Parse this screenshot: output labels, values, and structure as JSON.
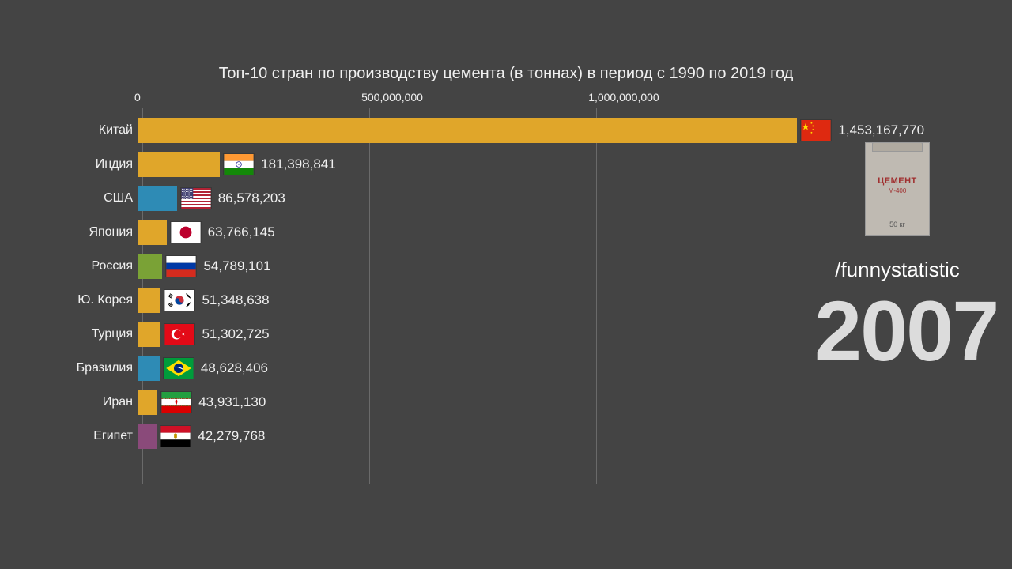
{
  "title": "Топ-10 стран по производству цемента (в тоннах) в период с 1990 по 2019 год",
  "channel": "/funnystatistic",
  "year": "2007",
  "cement_bag": {
    "line1": "ЦЕМЕНТ",
    "line2": "М-400",
    "line3": "50 кг"
  },
  "chart": {
    "type": "bar",
    "background_color": "#444444",
    "grid_color": "#6a6a6a",
    "text_color": "#f0f0f0",
    "label_fontsize": 16,
    "value_fontsize": 17,
    "title_fontsize": 20,
    "xmax": 1550000000,
    "xticks": [
      {
        "value": 0,
        "label": "0"
      },
      {
        "value": 500000000,
        "label": "500,000,000"
      },
      {
        "value": 1000000000,
        "label": "1,000,000,000"
      }
    ],
    "bars": [
      {
        "country": "Китай",
        "value": 1453167770,
        "value_label": "1,453,167,770",
        "color": "#e0a62a",
        "flag": "china"
      },
      {
        "country": "Индия",
        "value": 181398841,
        "value_label": "181,398,841",
        "color": "#e0a62a",
        "flag": "india"
      },
      {
        "country": "США",
        "value": 86578203,
        "value_label": "86,578,203",
        "color": "#2e8bb5",
        "flag": "usa"
      },
      {
        "country": "Япония",
        "value": 63766145,
        "value_label": "63,766,145",
        "color": "#e0a62a",
        "flag": "japan"
      },
      {
        "country": "Россия",
        "value": 54789101,
        "value_label": "54,789,101",
        "color": "#7aa236",
        "flag": "russia"
      },
      {
        "country": "Ю. Корея",
        "value": 51348638,
        "value_label": "51,348,638",
        "color": "#e0a62a",
        "flag": "skorea"
      },
      {
        "country": "Турция",
        "value": 51302725,
        "value_label": "51,302,725",
        "color": "#e0a62a",
        "flag": "turkey"
      },
      {
        "country": "Бразилия",
        "value": 48628406,
        "value_label": "48,628,406",
        "color": "#2e8bb5",
        "flag": "brazil"
      },
      {
        "country": "Иран",
        "value": 43931130,
        "value_label": "43,931,130",
        "color": "#e0a62a",
        "flag": "iran"
      },
      {
        "country": "Египет",
        "value": 42279768,
        "value_label": "42,279,768",
        "color": "#8a4a7a",
        "flag": "egypt"
      }
    ]
  }
}
